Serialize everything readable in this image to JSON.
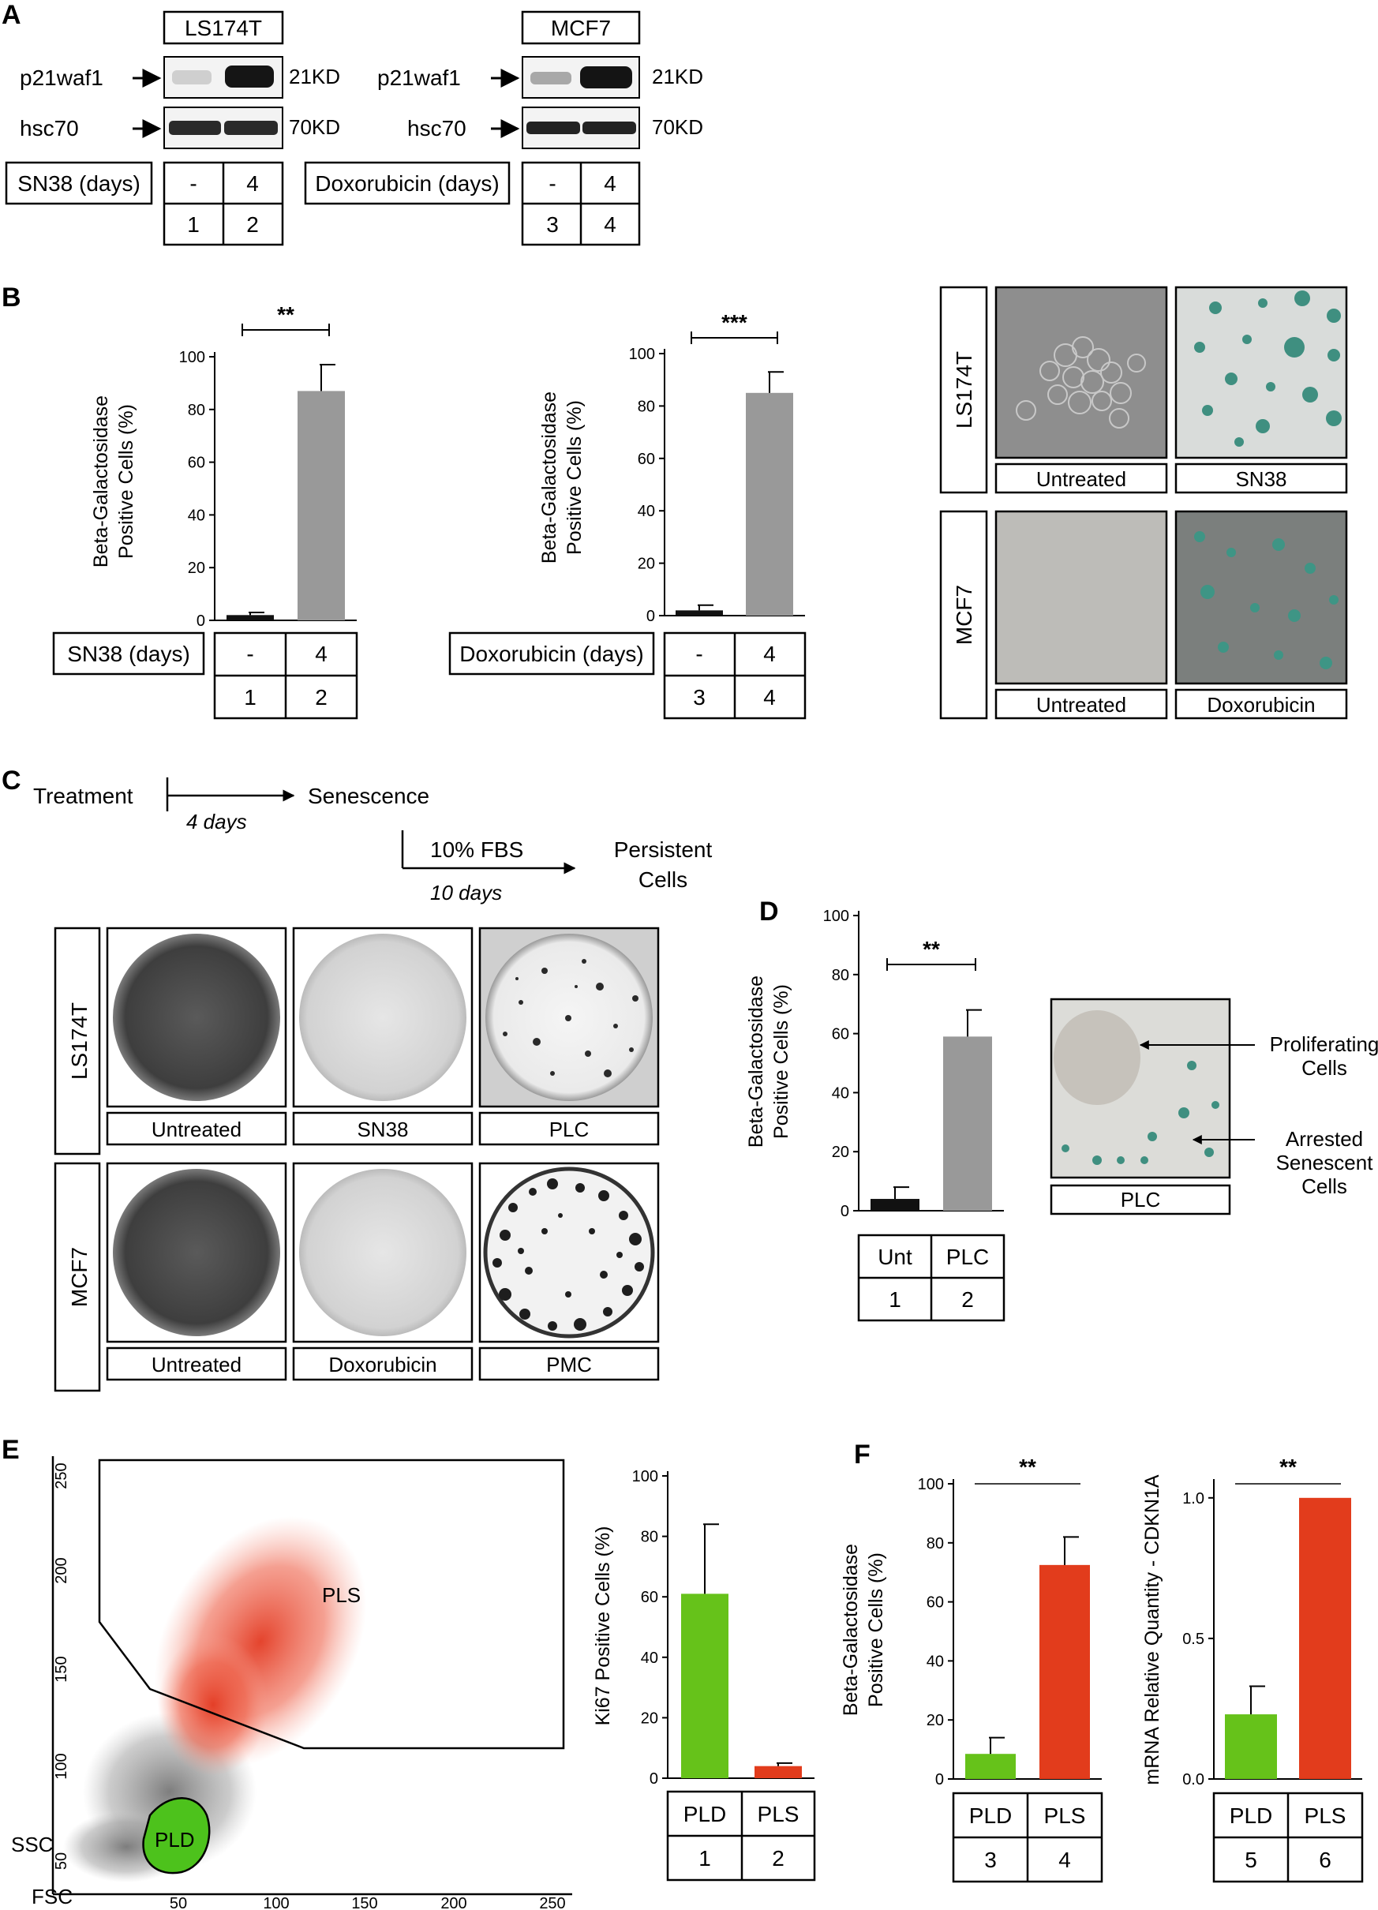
{
  "panels": {
    "A": {
      "letter": "A",
      "blot1": {
        "cell_line": "LS174T",
        "row_labels": [
          "p21waf1",
          "hsc70"
        ],
        "sizes": [
          "21KD",
          "70KD"
        ],
        "treatment": "SN38 (days)",
        "conditions": [
          "-",
          "4"
        ],
        "lanes": [
          "1",
          "2"
        ]
      },
      "blot2": {
        "cell_line": "MCF7",
        "row_labels": [
          "p21waf1",
          "hsc70"
        ],
        "sizes": [
          "21KD",
          "70KD"
        ],
        "treatment": "Doxorubicin (days)",
        "conditions": [
          "-",
          "4"
        ],
        "lanes": [
          "3",
          "4"
        ]
      }
    },
    "B": {
      "letter": "B",
      "table1": {
        "treatment": "SN38 (days)",
        "conditions": [
          "-",
          "4"
        ],
        "lanes": [
          "1",
          "2"
        ]
      },
      "table2": {
        "treatment": "Doxorubicin (days)",
        "conditions": [
          "-",
          "4"
        ],
        "lanes": [
          "3",
          "4"
        ]
      },
      "images": {
        "rows": [
          {
            "cell_line": "LS174T",
            "captions": [
              "Untreated",
              "SN38"
            ]
          },
          {
            "cell_line": "MCF7",
            "captions": [
              "Untreated",
              "Doxorubicin"
            ]
          }
        ]
      }
    },
    "C": {
      "letter": "C",
      "timeline": {
        "treatment": "Treatment",
        "duration1": "4 days",
        "senescence": "Senescence",
        "fbs": "10% FBS",
        "duration2": "10 days",
        "persistent_line1": "Persistent",
        "persistent_line2": "Cells"
      },
      "grid": {
        "rows": [
          {
            "cell_line": "LS174T",
            "captions": [
              "Untreated",
              "SN38",
              "PLC"
            ]
          },
          {
            "cell_line": "MCF7",
            "captions": [
              "Untreated",
              "Doxorubicin",
              "PMC"
            ]
          }
        ]
      }
    },
    "D": {
      "letter": "D",
      "table": {
        "conditions": [
          "Unt",
          "PLC"
        ],
        "lanes": [
          "1",
          "2"
        ]
      },
      "image": {
        "caption": "PLC",
        "annotation1_line1": "Proliferating",
        "annotation1_line2": "Cells",
        "annotation2_line1": "Arrested",
        "annotation2_line2": "Senescent",
        "annotation2_line3": "Cells"
      }
    },
    "E": {
      "letter": "E",
      "flow": {
        "gate_high": "PLS",
        "gate_low": "PLD",
        "y_axis": "SSC",
        "x_axis": "FSC",
        "y_ticks": [
          "250",
          "200",
          "150",
          "100",
          "50"
        ],
        "x_ticks": [
          "50",
          "100",
          "150",
          "200",
          "250"
        ]
      },
      "table": {
        "conditions": [
          "PLD",
          "PLS"
        ],
        "lanes": [
          "1",
          "2"
        ]
      }
    },
    "F": {
      "letter": "F",
      "table1": {
        "conditions": [
          "PLD",
          "PLS"
        ],
        "lanes": [
          "3",
          "4"
        ]
      },
      "table2": {
        "conditions": [
          "PLD",
          "PLS"
        ],
        "lanes": [
          "5",
          "6"
        ]
      }
    }
  },
  "colors": {
    "bar_black": "#111111",
    "bar_gray": "#999999",
    "bar_green": "#66c21a",
    "bar_red": "#e23c1c",
    "stain_teal": "#3f8f80",
    "flow_gray": "#8a8a8a",
    "flow_red": "#e8462a"
  },
  "chart_data": [
    {
      "id": "B1",
      "type": "bar",
      "categories": [
        "-",
        "4"
      ],
      "values": [
        2,
        87
      ],
      "errors": [
        1,
        10
      ],
      "bar_colors": [
        "#111111",
        "#999999"
      ],
      "ylabel": "Beta-Galactosidase Positive Cells (%)",
      "ylim": [
        0,
        100
      ],
      "yticks": [
        0,
        20,
        40,
        60,
        80,
        100
      ],
      "significance": "**"
    },
    {
      "id": "B2",
      "type": "bar",
      "categories": [
        "-",
        "4"
      ],
      "values": [
        2,
        85
      ],
      "errors": [
        2,
        8
      ],
      "bar_colors": [
        "#111111",
        "#999999"
      ],
      "ylabel": "Beta-Galactosidase Positive Cells (%)",
      "ylim": [
        0,
        100
      ],
      "yticks": [
        0,
        20,
        40,
        60,
        80,
        100
      ],
      "significance": "***"
    },
    {
      "id": "D",
      "type": "bar",
      "categories": [
        "Unt",
        "PLC"
      ],
      "values": [
        4,
        59
      ],
      "errors": [
        4,
        9
      ],
      "bar_colors": [
        "#111111",
        "#999999"
      ],
      "ylabel": "Beta-Galactosidase Positive Cells (%)",
      "ylim": [
        0,
        100
      ],
      "yticks": [
        0,
        20,
        40,
        60,
        80,
        100
      ],
      "significance": "**"
    },
    {
      "id": "E",
      "type": "bar",
      "categories": [
        "PLD",
        "PLS"
      ],
      "values": [
        61,
        4
      ],
      "errors": [
        23,
        1
      ],
      "bar_colors": [
        "#66c21a",
        "#e23c1c"
      ],
      "ylabel": "Ki67 Positive Cells (%)",
      "ylim": [
        0,
        100
      ],
      "yticks": [
        0,
        20,
        40,
        60,
        80,
        100
      ],
      "significance": ""
    },
    {
      "id": "F1",
      "type": "bar",
      "categories": [
        "PLD",
        "PLS"
      ],
      "values": [
        8.5,
        72.5
      ],
      "errors": [
        5.5,
        9.5
      ],
      "bar_colors": [
        "#66c21a",
        "#e23c1c"
      ],
      "ylabel": "Beta-Galactosidase Positive Cells (%)",
      "ylim": [
        0,
        100
      ],
      "yticks": [
        0,
        20,
        40,
        60,
        80,
        100
      ],
      "significance": "**"
    },
    {
      "id": "F2",
      "type": "bar",
      "categories": [
        "PLD",
        "PLS"
      ],
      "values": [
        0.23,
        1.0
      ],
      "errors": [
        0.1,
        0
      ],
      "bar_colors": [
        "#66c21a",
        "#e23c1c"
      ],
      "ylabel": "mRNA Relative Quantity - CDKN1A",
      "ylim": [
        0,
        1.05
      ],
      "yticks": [
        "0.0",
        "0.5",
        "1.0"
      ],
      "significance": "**"
    }
  ]
}
